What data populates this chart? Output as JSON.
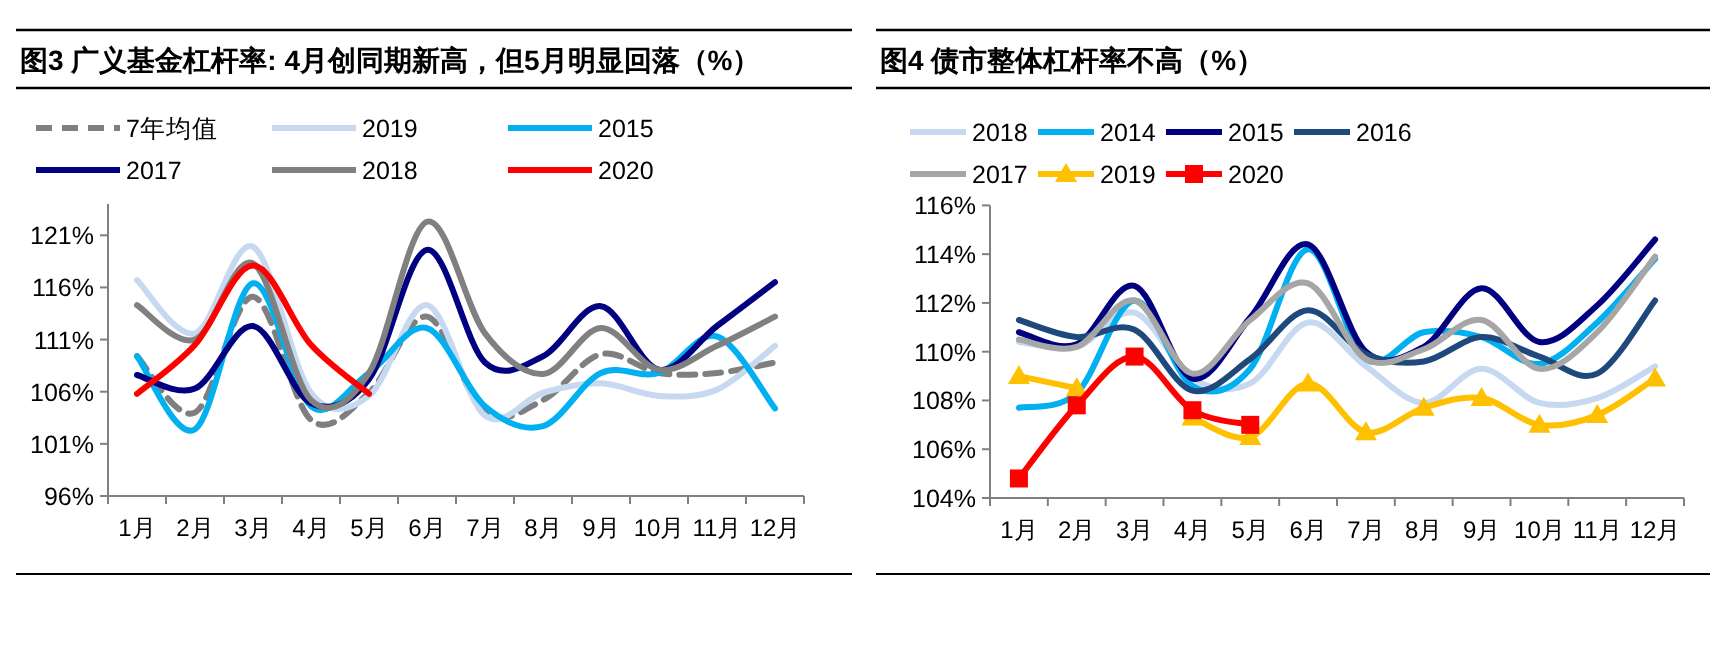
{
  "chart_data": [
    {
      "type": "line",
      "title": "图3  广义基金杠杆率: 4月创同期新高，但5月明显回落（%）",
      "categories": [
        "1月",
        "2月",
        "3月",
        "4月",
        "5月",
        "6月",
        "7月",
        "8月",
        "9月",
        "10月",
        "11月",
        "12月"
      ],
      "series": [
        {
          "name": "7年均值",
          "color": "#7f7f7f",
          "line_style": "dashed",
          "values": [
            109.4,
            104.0,
            115.1,
            103.3,
            105.9,
            113.2,
            104.0,
            105.2,
            109.6,
            107.8,
            107.8,
            108.8
          ]
        },
        {
          "name": "2019",
          "color": "#c6d9f1",
          "line_style": "solid",
          "values": [
            116.7,
            111.6,
            119.9,
            105.9,
            105.6,
            114.3,
            103.7,
            105.9,
            106.8,
            105.6,
            106.2,
            110.4
          ]
        },
        {
          "name": "2015",
          "color": "#00b0f0",
          "line_style": "solid",
          "values": [
            109.4,
            102.4,
            116.4,
            104.6,
            107.8,
            112.1,
            104.6,
            102.7,
            107.8,
            107.8,
            111.3,
            104.4
          ]
        },
        {
          "name": "2017",
          "color": "#000080",
          "line_style": "solid",
          "values": [
            107.6,
            106.3,
            112.3,
            104.9,
            107.2,
            119.6,
            108.8,
            109.4,
            114.2,
            108.1,
            112.3,
            116.5
          ]
        },
        {
          "name": "2018",
          "color": "#808080",
          "line_style": "solid",
          "values": [
            114.3,
            111.0,
            118.3,
            105.2,
            107.8,
            122.3,
            111.6,
            107.7,
            112.1,
            108.1,
            110.4,
            113.2
          ]
        },
        {
          "name": "2020",
          "color": "#ff0000",
          "line_style": "solid",
          "values": [
            105.8,
            110.5,
            118.1,
            110.5,
            105.8,
            null,
            null,
            null,
            null,
            null,
            null,
            null
          ]
        }
      ],
      "ylim": [
        96,
        124
      ],
      "yticks": [
        {
          "value": 96,
          "label": "96%"
        },
        {
          "value": 101,
          "label": "101%"
        },
        {
          "value": 106,
          "label": "106%"
        },
        {
          "value": 111,
          "label": "111%"
        },
        {
          "value": 116,
          "label": "116%"
        },
        {
          "value": 121,
          "label": "121%"
        }
      ],
      "legend": "top"
    },
    {
      "type": "line",
      "title": "图4  债市整体杠杆率不高（%）",
      "categories": [
        "1月",
        "2月",
        "3月",
        "4月",
        "5月",
        "6月",
        "7月",
        "8月",
        "9月",
        "10月",
        "11月",
        "12月"
      ],
      "series": [
        {
          "name": "2018",
          "color": "#c6d9f1",
          "values": [
            110.4,
            110.2,
            111.6,
            108.9,
            108.7,
            111.2,
            109.4,
            107.9,
            109.3,
            107.9,
            108.1,
            109.4
          ]
        },
        {
          "name": "2014",
          "color": "#00b0f0",
          "values": [
            107.7,
            108.3,
            112.1,
            108.6,
            109.3,
            114.2,
            109.7,
            110.8,
            110.6,
            109.5,
            111.2,
            113.8
          ]
        },
        {
          "name": "2015",
          "color": "#000080",
          "values": [
            110.8,
            110.3,
            112.7,
            108.9,
            111.4,
            114.4,
            110.0,
            110.2,
            112.6,
            110.4,
            111.9,
            114.6
          ]
        },
        {
          "name": "2016",
          "color": "#1f497d",
          "values": [
            111.3,
            110.6,
            110.9,
            108.4,
            109.7,
            111.7,
            109.9,
            109.6,
            110.6,
            109.8,
            109.1,
            112.1
          ]
        },
        {
          "name": "2017",
          "color": "#a6a6a6",
          "values": [
            110.5,
            110.2,
            112.1,
            109.1,
            111.3,
            112.8,
            109.7,
            110.1,
            111.3,
            109.3,
            110.8,
            113.9
          ]
        },
        {
          "name": "2019",
          "color": "#ffc000",
          "marker": "triangle",
          "values": [
            109.0,
            108.5,
            null,
            107.3,
            106.5,
            108.7,
            106.7,
            107.7,
            108.1,
            107.0,
            107.4,
            108.9
          ]
        },
        {
          "name": "2020",
          "color": "#ff0000",
          "marker": "square",
          "values": [
            104.8,
            107.8,
            109.8,
            107.6,
            107.0,
            null,
            null,
            null,
            null,
            null,
            null,
            null
          ]
        }
      ],
      "ylim": [
        104,
        116
      ],
      "yticks": [
        {
          "value": 104,
          "label": "104%"
        },
        {
          "value": 106,
          "label": "106%"
        },
        {
          "value": 108,
          "label": "108%"
        },
        {
          "value": 110,
          "label": "110%"
        },
        {
          "value": 112,
          "label": "112%"
        },
        {
          "value": 114,
          "label": "114%"
        },
        {
          "value": 116,
          "label": "116%"
        }
      ],
      "legend": "top"
    }
  ]
}
